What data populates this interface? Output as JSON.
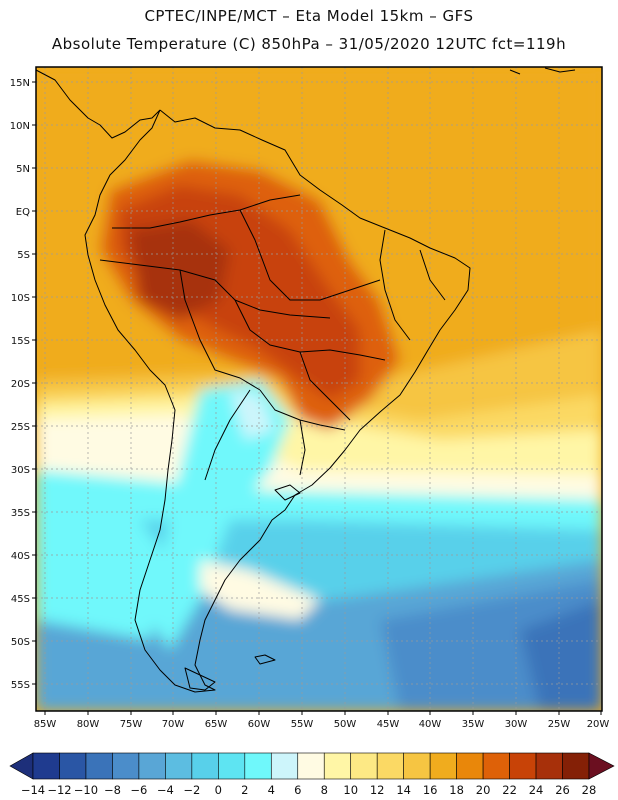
{
  "header": {
    "line1": "CPTEC/INPE/MCT –  Eta Model 15km – GFS",
    "line2": "Absolute Temperature (C) 850hPa – 31/05/2020 12UTC fct=119h"
  },
  "map": {
    "lat_labels": [
      "15N",
      "10N",
      "5N",
      "EQ",
      "5S",
      "10S",
      "15S",
      "20S",
      "25S",
      "30S",
      "35S",
      "40S",
      "45S",
      "50S",
      "55S"
    ],
    "lon_labels": [
      "85W",
      "80W",
      "75W",
      "70W",
      "65W",
      "60W",
      "55W",
      "50W",
      "45W",
      "40W",
      "35W",
      "30W",
      "25W",
      "20W"
    ],
    "lat_range": [
      17.5,
      -58
    ],
    "lon_range": [
      -86,
      -20
    ]
  },
  "colorbar": {
    "labels": [
      "-14",
      "-12",
      "-10",
      "-8",
      "-6",
      "-4",
      "-2",
      "0",
      "2",
      "4",
      "6",
      "8",
      "10",
      "12",
      "14",
      "16",
      "18",
      "20",
      "22",
      "24",
      "26",
      "28"
    ],
    "colors": [
      "#1f3b8f",
      "#2a56a5",
      "#3a73b9",
      "#4b8dca",
      "#59a6d6",
      "#5cbde1",
      "#58d0ea",
      "#5ee4f2",
      "#6ff8fb",
      "#cdf5fb",
      "#fffbe3",
      "#fff6a6",
      "#fde985",
      "#fbd964",
      "#f6c542",
      "#f0ac1e",
      "#e9870a",
      "#de6108",
      "#c84307",
      "#a7300a",
      "#842006"
    ]
  }
}
